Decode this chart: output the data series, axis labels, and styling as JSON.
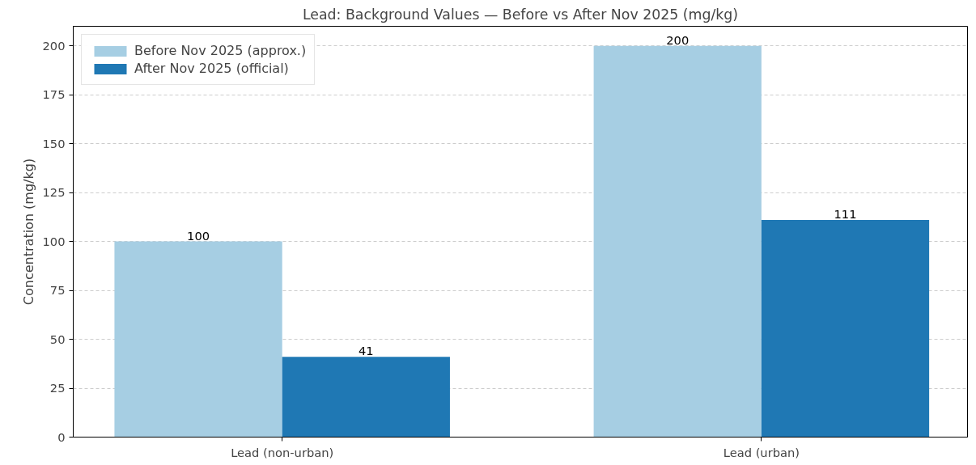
{
  "chart_data": {
    "type": "bar",
    "title": "Lead: Background Values — Before vs After Nov 2025 (mg/kg)",
    "ylabel": "Concentration (mg/kg)",
    "categories": [
      "Lead (non-urban)",
      "Lead (urban)"
    ],
    "series": [
      {
        "name": "Before Nov 2025 (approx.)",
        "color": "#a6cee3",
        "values": [
          100,
          200
        ]
      },
      {
        "name": "After Nov 2025 (official)",
        "color": "#1f78b4",
        "values": [
          41,
          111
        ]
      }
    ],
    "ylim": [
      0,
      210
    ],
    "yticks": [
      0,
      25,
      50,
      75,
      100,
      125,
      150,
      175,
      200
    ],
    "grid": "y",
    "legend": "top left",
    "data_labels": true
  }
}
